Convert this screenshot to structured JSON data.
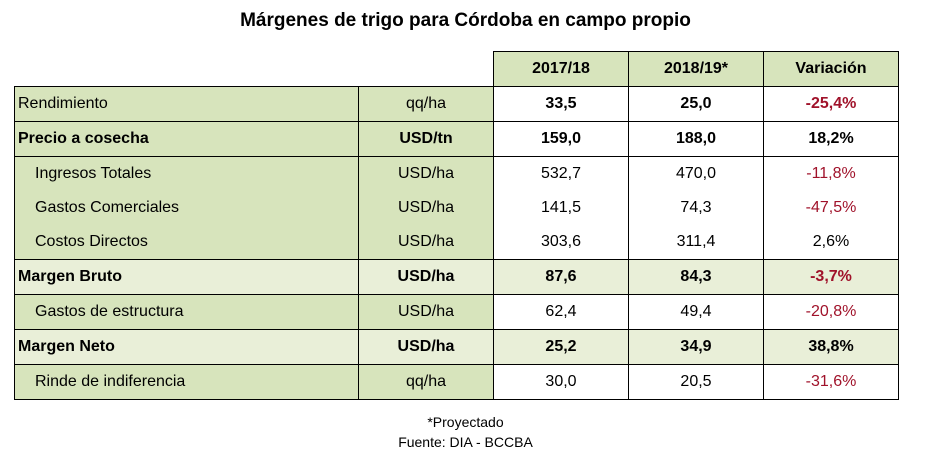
{
  "title": "Márgenes de trigo para Córdoba en campo propio",
  "headers": [
    "2017/18",
    "2018/19*",
    "Variación"
  ],
  "rows": [
    {
      "label": "Rendimiento",
      "unit": "qq/ha",
      "v1": "33,5",
      "v2": "25,0",
      "var": "-25,4%"
    },
    {
      "label": "Precio a cosecha",
      "unit": "USD/tn",
      "v1": "159,0",
      "v2": "188,0",
      "var": "18,2%"
    },
    {
      "label": "Ingresos Totales",
      "unit": "USD/ha",
      "v1": "532,7",
      "v2": "470,0",
      "var": "-11,8%"
    },
    {
      "label": "Gastos Comerciales",
      "unit": "USD/ha",
      "v1": "141,5",
      "v2": "74,3",
      "var": "-47,5%"
    },
    {
      "label": "Costos Directos",
      "unit": "USD/ha",
      "v1": "303,6",
      "v2": "311,4",
      "var": "2,6%"
    },
    {
      "label": "Margen Bruto",
      "unit": "USD/ha",
      "v1": "87,6",
      "v2": "84,3",
      "var": "-3,7%"
    },
    {
      "label": "Gastos de estructura",
      "unit": "USD/ha",
      "v1": "62,4",
      "v2": "49,4",
      "var": "-20,8%"
    },
    {
      "label": "Margen Neto",
      "unit": "USD/ha",
      "v1": "25,2",
      "v2": "34,9",
      "var": "38,8%"
    },
    {
      "label": "Rinde de indiferencia",
      "unit": "qq/ha",
      "v1": "30,0",
      "v2": "20,5",
      "var": "-31,6%"
    }
  ],
  "footnote": "*Proyectado",
  "source": "Fuente: DIA - BCCBA",
  "colors": {
    "header_fill": "#d7e4bc",
    "negative": "#a0122a"
  }
}
